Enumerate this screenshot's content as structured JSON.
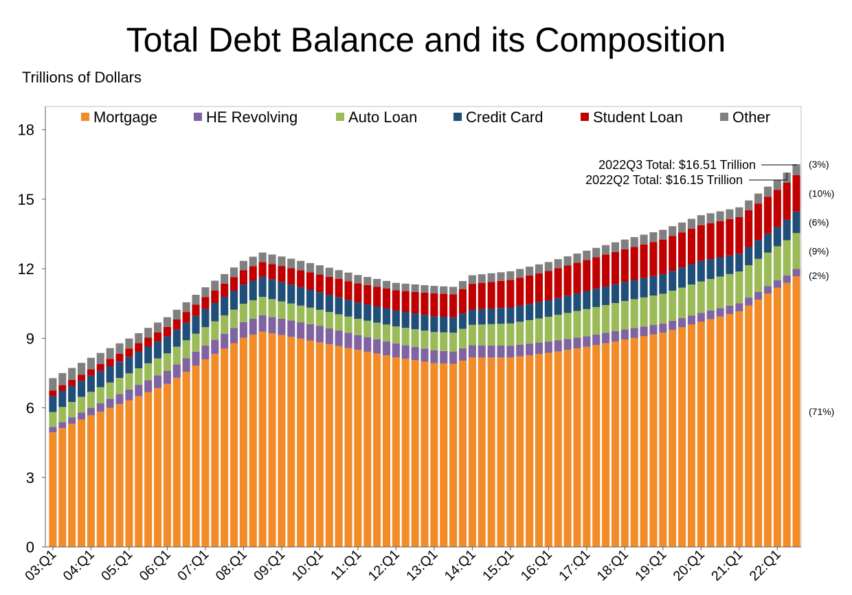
{
  "chart_data": {
    "type": "bar",
    "stacked": true,
    "title": "Total Debt Balance and its Composition",
    "units_label": "Trillions of Dollars",
    "ylim": [
      0,
      19
    ],
    "yticks": [
      0,
      3,
      6,
      9,
      12,
      15,
      18
    ],
    "xtick_labels": [
      "03:Q1",
      "04:Q1",
      "05:Q1",
      "06:Q1",
      "07:Q1",
      "08:Q1",
      "09:Q1",
      "10:Q1",
      "11:Q1",
      "12:Q1",
      "13:Q1",
      "14:Q1",
      "15:Q1",
      "16:Q1",
      "17:Q1",
      "18:Q1",
      "19:Q1",
      "20:Q1",
      "21:Q1",
      "22:Q1"
    ],
    "legend_position": "top",
    "colors": {
      "Mortgage": "#f28c28",
      "HE Revolving": "#8064a2",
      "Auto Loan": "#9bbb59",
      "Credit Card": "#1f4e79",
      "Student Loan": "#c00000",
      "Other": "#808080"
    },
    "series_names": [
      "Mortgage",
      "HE Revolving",
      "Auto Loan",
      "Credit Card",
      "Student Loan",
      "Other"
    ],
    "quarters_per_year": 4,
    "first_quarter": "2003Q1",
    "last_quarter": "2022Q3",
    "anchors": {
      "2003Q1": [
        4.94,
        0.24,
        0.64,
        0.69,
        0.24,
        0.53
      ],
      "2004Q1": [
        5.68,
        0.32,
        0.69,
        0.7,
        0.27,
        0.5
      ],
      "2005Q1": [
        6.32,
        0.47,
        0.7,
        0.71,
        0.36,
        0.43
      ],
      "2006Q1": [
        7.03,
        0.57,
        0.75,
        0.73,
        0.41,
        0.42
      ],
      "2007Q1": [
        8.09,
        0.6,
        0.79,
        0.78,
        0.52,
        0.42
      ],
      "2008Q1": [
        9.02,
        0.68,
        0.79,
        0.83,
        0.61,
        0.41
      ],
      "2008Q3": [
        9.29,
        0.7,
        0.8,
        0.86,
        0.64,
        0.41
      ],
      "2009Q1": [
        9.14,
        0.71,
        0.74,
        0.84,
        0.69,
        0.41
      ],
      "2010Q1": [
        8.83,
        0.7,
        0.7,
        0.76,
        0.76,
        0.4
      ],
      "2011Q1": [
        8.5,
        0.64,
        0.7,
        0.71,
        0.82,
        0.36
      ],
      "2012Q1": [
        8.18,
        0.6,
        0.73,
        0.69,
        0.87,
        0.32
      ],
      "2013Q1": [
        7.93,
        0.55,
        0.79,
        0.68,
        0.99,
        0.32
      ],
      "2013Q3": [
        7.9,
        0.53,
        0.81,
        0.67,
        0.99,
        0.32
      ],
      "2014Q1": [
        8.17,
        0.53,
        0.88,
        0.66,
        1.11,
        0.37
      ],
      "2015Q1": [
        8.17,
        0.51,
        0.96,
        0.69,
        1.19,
        0.37
      ],
      "2016Q1": [
        8.37,
        0.49,
        1.07,
        0.71,
        1.26,
        0.39
      ],
      "2017Q1": [
        8.63,
        0.46,
        1.17,
        0.78,
        1.34,
        0.4
      ],
      "2018Q1": [
        8.94,
        0.44,
        1.23,
        0.82,
        1.41,
        0.42
      ],
      "2019Q1": [
        9.24,
        0.4,
        1.28,
        0.85,
        1.49,
        0.42
      ],
      "2020Q1": [
        9.71,
        0.39,
        1.35,
        0.89,
        1.54,
        0.43
      ],
      "2021Q1": [
        10.16,
        0.35,
        1.37,
        0.77,
        1.58,
        0.42
      ],
      "2022Q1": [
        11.18,
        0.32,
        1.47,
        0.84,
        1.59,
        0.44
      ],
      "2022Q2": [
        11.39,
        0.32,
        1.52,
        0.89,
        1.59,
        0.44
      ],
      "2022Q3": [
        11.67,
        0.32,
        1.55,
        0.93,
        1.57,
        0.47
      ]
    },
    "annotations": [
      {
        "text": "2022Q3 Total: $16.51 Trillion",
        "quarter": "2022Q3"
      },
      {
        "text": "2022Q2 Total: $16.15 Trillion",
        "quarter": "2022Q2"
      }
    ],
    "share_labels": [
      {
        "series": "Other",
        "text": "(3%)"
      },
      {
        "series": "Student Loan",
        "text": "(10%)"
      },
      {
        "series": "Credit Card",
        "text": "(6%)"
      },
      {
        "series": "Auto Loan",
        "text": "(9%)"
      },
      {
        "series": "HE Revolving",
        "text": "(2%)"
      },
      {
        "series": "Mortgage",
        "text": "(71%)"
      }
    ]
  }
}
